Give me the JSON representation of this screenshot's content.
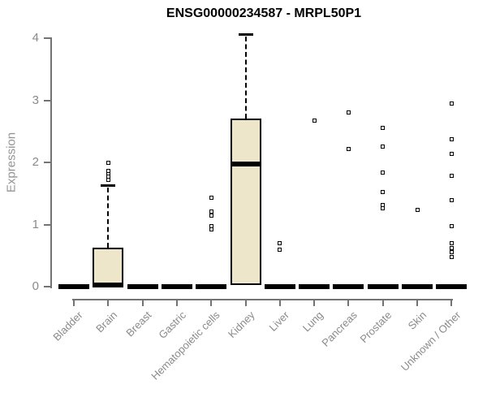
{
  "chart_data": {
    "type": "boxplot",
    "title": "ENSG00000234587 - MRPL50P1",
    "ylabel": "Expression",
    "xlabel": "",
    "ylim": [
      0,
      4.2
    ],
    "yticks": [
      0,
      1,
      2,
      3,
      4
    ],
    "grid": false,
    "legend": false,
    "categories": [
      "Bladder",
      "Brain",
      "Breast",
      "Gastric",
      "Hematopoietic cells",
      "Kidney",
      "Liver",
      "Lung",
      "Pancreas",
      "Prostate",
      "Skin",
      "Unknown / Other"
    ],
    "series": [
      {
        "name": "Bladder",
        "q1": 0,
        "median": 0,
        "q3": 0,
        "whisker_low": 0,
        "whisker_high": 0,
        "outliers": []
      },
      {
        "name": "Brain",
        "q1": 0,
        "median": 0.02,
        "q3": 0.63,
        "whisker_low": 0,
        "whisker_high": 1.63,
        "outliers": [
          1.72,
          1.77,
          1.82,
          1.86,
          1.99
        ]
      },
      {
        "name": "Breast",
        "q1": 0,
        "median": 0,
        "q3": 0,
        "whisker_low": 0,
        "whisker_high": 0,
        "outliers": []
      },
      {
        "name": "Gastric",
        "q1": 0,
        "median": 0,
        "q3": 0,
        "whisker_low": 0,
        "whisker_high": 0,
        "outliers": []
      },
      {
        "name": "Hematopoietic cells",
        "q1": 0,
        "median": 0,
        "q3": 0,
        "whisker_low": 0,
        "whisker_high": 0,
        "outliers": [
          0.92,
          0.97,
          1.15,
          1.21,
          1.43
        ]
      },
      {
        "name": "Kidney",
        "q1": 0.02,
        "median": 1.97,
        "q3": 2.71,
        "whisker_low": 0.02,
        "whisker_high": 4.07,
        "outliers": []
      },
      {
        "name": "Liver",
        "q1": 0,
        "median": 0,
        "q3": 0,
        "whisker_low": 0,
        "whisker_high": 0,
        "outliers": [
          0.59,
          0.7
        ]
      },
      {
        "name": "Lung",
        "q1": 0,
        "median": 0,
        "q3": 0,
        "whisker_low": 0,
        "whisker_high": 0,
        "outliers": [
          2.67
        ]
      },
      {
        "name": "Pancreas",
        "q1": 0,
        "median": 0,
        "q3": 0,
        "whisker_low": 0,
        "whisker_high": 0,
        "outliers": [
          2.21,
          2.8
        ]
      },
      {
        "name": "Prostate",
        "q1": 0,
        "median": 0,
        "q3": 0,
        "whisker_low": 0,
        "whisker_high": 0,
        "outliers": [
          1.26,
          1.31,
          1.52,
          1.84,
          2.25,
          2.55
        ]
      },
      {
        "name": "Skin",
        "q1": 0,
        "median": 0,
        "q3": 0,
        "whisker_low": 0,
        "whisker_high": 0,
        "outliers": [
          1.24
        ]
      },
      {
        "name": "Unknown / Other",
        "q1": 0,
        "median": 0,
        "q3": 0,
        "whisker_low": 0,
        "whisker_high": 0,
        "outliers": [
          0.48,
          0.55,
          0.62,
          0.7,
          0.98,
          1.39,
          1.78,
          2.14,
          2.37,
          2.95
        ]
      }
    ]
  },
  "colors": {
    "box_fill": "#EDE6CB",
    "box_border": "#000000",
    "median": "#000000",
    "whisker": "#000000",
    "outlier_border": "#000000",
    "axis_line": "#737373",
    "tick_label": "#8A8A8A",
    "axis_title": "#949494",
    "title": "#000000",
    "background": "#FFFFFF"
  }
}
